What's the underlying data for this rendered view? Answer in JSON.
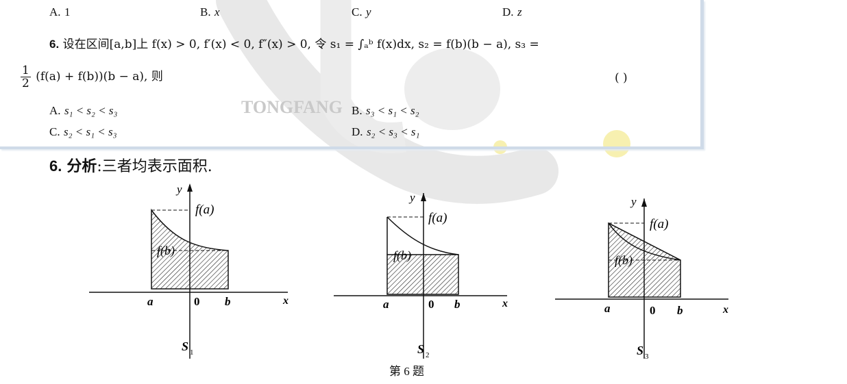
{
  "watermark": {
    "brand": "TONGFANG"
  },
  "prev_options": [
    {
      "letter": "A.",
      "text": "1"
    },
    {
      "letter": "B.",
      "text": "x"
    },
    {
      "letter": "C.",
      "text": "y"
    },
    {
      "letter": "D.",
      "text": "z"
    }
  ],
  "question": {
    "number": "6.",
    "stem_line1": "设在区间[a,b]上 f(x) > 0, f′(x) < 0, f″(x) > 0, 令 s₁ = ∫ₐᵇ f(x)dx, s₂ = f(b)(b − a), s₃ =",
    "frac_num": "1",
    "frac_den": "2",
    "stem_line2": "(f(a) + f(b))(b − a), 则",
    "blank": "(      )",
    "options": [
      {
        "letter": "A.",
        "text": "s₁ < s₂ < s₃"
      },
      {
        "letter": "B.",
        "text": "s₃ < s₁ < s₂"
      },
      {
        "letter": "C.",
        "text": "s₂ < s₁ < s₃"
      },
      {
        "letter": "D.",
        "text": "s₂ < s₃ < s₁"
      }
    ]
  },
  "analysis": {
    "number": "6.",
    "label": "分析",
    "text": ":三者均表示面积."
  },
  "figures": [
    {
      "name": "S",
      "sub": "1",
      "fa": "f(a)",
      "fb": "f(b)",
      "a": "a",
      "zero": "0",
      "b": "b",
      "x": "x",
      "y": "y"
    },
    {
      "name": "S",
      "sub": "2",
      "fa": "f(a)",
      "fb": "f(b)",
      "a": "a",
      "zero": "0",
      "b": "b",
      "x": "x",
      "y": "y"
    },
    {
      "name": "S",
      "sub": "3",
      "fa": "f(a)",
      "fb": "f(b)",
      "a": "a",
      "zero": "0",
      "b": "b",
      "x": "x",
      "y": "y"
    }
  ],
  "caption": "第 6 题"
}
